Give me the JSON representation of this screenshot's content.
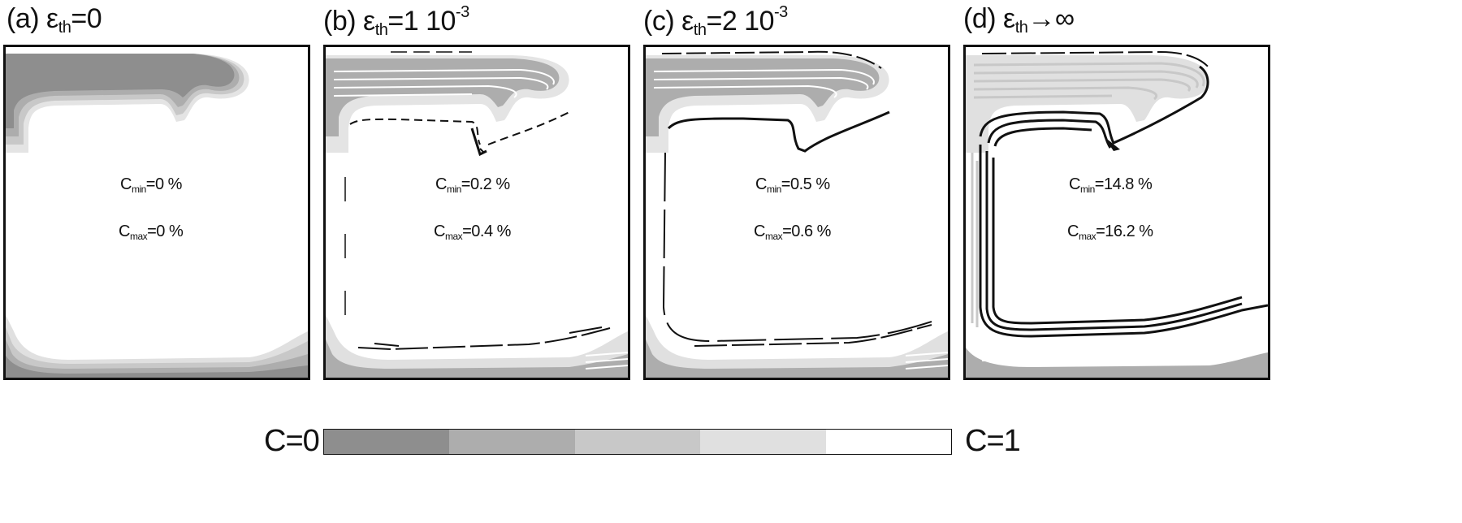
{
  "figure": {
    "panels": [
      {
        "label": "(a)",
        "eps_sub": "th",
        "eq": "=0",
        "exp": "",
        "c_min": "=0 %",
        "c_max": "=0 %"
      },
      {
        "label": "(b)",
        "eps_sub": "th",
        "eq": "=1 10",
        "exp": "-3",
        "c_min": "=0.2 %",
        "c_max": "=0.4 %"
      },
      {
        "label": "(c)",
        "eps_sub": "th",
        "eq": "=2 10",
        "exp": "-3",
        "c_min": "=0.5 %",
        "c_max": "=0.6 %"
      },
      {
        "label": "(d)",
        "eps_sub": "th",
        "eq": "→∞",
        "exp": "",
        "c_min": "=14.8 %",
        "c_max": "=16.2 %"
      }
    ],
    "symbols": {
      "epsilon": "ε",
      "c": "C",
      "min_sub": "min",
      "max_sub": "max"
    },
    "colorbar": {
      "left_label": "C=0",
      "right_label": "C=1",
      "colors": [
        "#8e8e8e",
        "#adadad",
        "#c8c8c8",
        "#e0e0e0",
        "#ffffff"
      ]
    }
  }
}
